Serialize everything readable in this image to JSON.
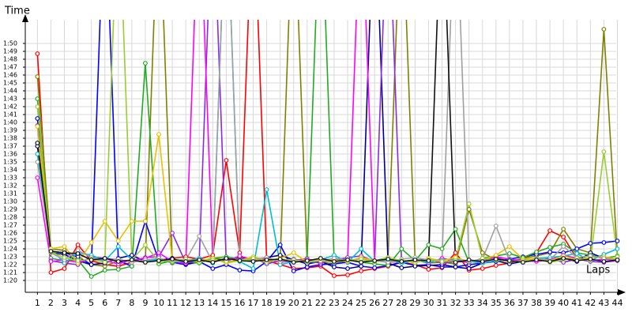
{
  "chart_data": {
    "type": "line",
    "y_label": "Time",
    "x_label": "Laps",
    "x": [
      1,
      2,
      3,
      4,
      5,
      6,
      7,
      8,
      9,
      10,
      11,
      12,
      13,
      14,
      15,
      16,
      17,
      18,
      19,
      20,
      21,
      22,
      23,
      24,
      25,
      26,
      27,
      28,
      29,
      30,
      31,
      32,
      33,
      34,
      35,
      36,
      37,
      38,
      39,
      40,
      41,
      42,
      43,
      44
    ],
    "xlim": [
      0.1,
      44.5
    ],
    "xticks": [
      1,
      2,
      3,
      4,
      5,
      6,
      7,
      8,
      9,
      10,
      11,
      12,
      13,
      14,
      15,
      16,
      17,
      18,
      19,
      20,
      21,
      22,
      23,
      24,
      25,
      26,
      27,
      28,
      29,
      30,
      31,
      32,
      33,
      34,
      35,
      36,
      37,
      38,
      39,
      40,
      41,
      42,
      43,
      44
    ],
    "ylim": [
      78.5,
      113
    ],
    "yticks": [
      {
        "value": 80,
        "label": "1:20"
      },
      {
        "value": 81,
        "label": "1:21"
      },
      {
        "value": 82,
        "label": "1:22"
      },
      {
        "value": 83,
        "label": "1:23"
      },
      {
        "value": 84,
        "label": "1:24"
      },
      {
        "value": 85,
        "label": "1:25"
      },
      {
        "value": 86,
        "label": "1:26"
      },
      {
        "value": 87,
        "label": "1:27"
      },
      {
        "value": 88,
        "label": "1:28"
      },
      {
        "value": 89,
        "label": "1:29"
      },
      {
        "value": 90,
        "label": "1:30"
      },
      {
        "value": 91,
        "label": "1:31"
      },
      {
        "value": 92,
        "label": "1:32"
      },
      {
        "value": 93,
        "label": "1:33"
      },
      {
        "value": 94,
        "label": "1:34"
      },
      {
        "value": 95,
        "label": "1:35"
      },
      {
        "value": 96,
        "label": "1:36"
      },
      {
        "value": 97,
        "label": "1:37"
      },
      {
        "value": 98,
        "label": "1:38"
      },
      {
        "value": 99,
        "label": "1:39"
      },
      {
        "value": 100,
        "label": "1:40"
      },
      {
        "value": 101,
        "label": "1:41"
      },
      {
        "value": 102,
        "label": "1:42"
      },
      {
        "value": 103,
        "label": "1:43"
      },
      {
        "value": 104,
        "label": "1:44"
      },
      {
        "value": 105,
        "label": "1:45"
      },
      {
        "value": 106,
        "label": "1:46"
      },
      {
        "value": 107,
        "label": "1:47"
      },
      {
        "value": 108,
        "label": "1:48"
      },
      {
        "value": 109,
        "label": "1:49"
      },
      {
        "value": 110,
        "label": "1:50"
      }
    ],
    "grid": true,
    "series": [
      {
        "color": "#ff0000",
        "values": [
          108.7,
          81,
          81.5,
          84.5,
          82.5,
          82,
          81.8,
          82.3,
          82.6,
          82.5,
          82.8,
          83,
          82.7,
          83.2,
          95.2,
          83.5,
          130,
          82.5,
          82,
          81.5,
          81.6,
          81.8,
          80.6,
          80.7,
          81.2,
          81.5,
          81.8,
          82.3,
          82,
          81.4,
          81.6,
          83.5,
          81.3,
          81.5,
          81.9,
          82.2,
          82.8,
          83.5,
          86.3,
          85.5,
          82.8,
          83.2,
          82.8,
          82.6
        ]
      },
      {
        "color": "#808000",
        "values": [
          105.8,
          84,
          83.8,
          82.5,
          82,
          81.8,
          82.5,
          82.5,
          82.3,
          130,
          82.2,
          82.5,
          82.4,
          82.8,
          82.6,
          82.8,
          82.5,
          82.8,
          82.5,
          130,
          82.3,
          82.3,
          82.1,
          82.5,
          82.7,
          82.5,
          82.9,
          130,
          82.6,
          82.2,
          82.3,
          82.1,
          89,
          83.5,
          82.6,
          82.4,
          82.8,
          83.1,
          83.5,
          86.5,
          84,
          83.5,
          111.8,
          83
        ]
      },
      {
        "color": "#0000ff",
        "values": [
          100.5,
          83.7,
          83.5,
          83,
          82,
          130,
          82.5,
          81.8,
          87.5,
          82.5,
          82.3,
          82,
          82.4,
          81.5,
          82,
          81.3,
          81.2,
          82.4,
          84.5,
          81.2,
          81.7,
          82,
          82.1,
          82.3,
          81.8,
          81.6,
          81.9,
          82.3,
          81.9,
          82,
          81.7,
          81.7,
          82,
          82.2,
          82.4,
          82.7,
          83,
          83.3,
          83.6,
          83.5,
          84,
          84.7,
          84.8,
          85
        ]
      },
      {
        "color": "#00008b",
        "values": [
          97,
          83.5,
          83.3,
          82.5,
          82,
          82.2,
          82.8,
          83.2,
          82.4,
          82.6,
          82.8,
          82.1,
          82.3,
          82.7,
          82.5,
          83,
          82.6,
          82.9,
          83.2,
          82.6,
          82.1,
          82.4,
          81.7,
          81.5,
          81.8,
          130,
          82.2,
          81.6,
          81.8,
          81.9,
          82,
          81.7,
          81.5,
          82.2,
          82.5,
          82.1,
          82.4,
          82.5,
          82.6,
          82.8,
          82.4,
          83.5,
          82.8,
          82.6
        ]
      },
      {
        "color": "#22aa22",
        "values": [
          103,
          82.8,
          82.5,
          82.6,
          80.5,
          81.3,
          81.4,
          81.8,
          107.5,
          82.1,
          82.5,
          82.4,
          82.2,
          82.8,
          83,
          82.7,
          82.5,
          82.6,
          82.4,
          82.5,
          82.8,
          130,
          82.5,
          82.7,
          82.3,
          82.1,
          81.9,
          84,
          82.5,
          84.5,
          84,
          86.5,
          82.3,
          82.8,
          83.1,
          83.4,
          82.9,
          83.6,
          84.2,
          84.6,
          83.5,
          83.2,
          82.8,
          83.1
        ]
      },
      {
        "color": "#8a2be2",
        "values": [
          99.6,
          82.5,
          82.2,
          82,
          83,
          82.8,
          82.6,
          82.4,
          82.9,
          83,
          86,
          82.2,
          82.5,
          130,
          82.3,
          82.6,
          82.9,
          82.1,
          82.5,
          82.7,
          82.4,
          82.2,
          82.6,
          82.9,
          83.1,
          82.4,
          130,
          82.3,
          82.5,
          82.7,
          82.2,
          82.4,
          82.3,
          82.6,
          82.9,
          82.4,
          82.6,
          82.5,
          82.8,
          82.3,
          82.7,
          82.4,
          82.3,
          82.5
        ]
      },
      {
        "color": "#ff00ff",
        "values": [
          93,
          82.4,
          82.6,
          82.3,
          82.8,
          82.5,
          82.1,
          82.6,
          82.8,
          83.5,
          82.4,
          82.2,
          130,
          82.6,
          82.4,
          83.1,
          82.6,
          82.8,
          82.3,
          82.5,
          82.7,
          82.4,
          82.8,
          82.6,
          130,
          82.5,
          82.3,
          82.4,
          82.6,
          82.2,
          82.8,
          82.5,
          82.4,
          82.3,
          83,
          82.7,
          82.5,
          82.4,
          82.6,
          83.2,
          82.8,
          82.5,
          82.7,
          82.6
        ]
      },
      {
        "color": "#00bcd4",
        "values": [
          96,
          84,
          82.2,
          83.5,
          83.2,
          82.5,
          84.3,
          82.6,
          82.4,
          82.7,
          82.3,
          82.5,
          82.8,
          82.2,
          130,
          82.4,
          81.5,
          91.5,
          82,
          82.4,
          82.5,
          82.6,
          83.2,
          82.3,
          84,
          82.4,
          82.6,
          82.2,
          82.5,
          82.3,
          82.6,
          82.7,
          82.4,
          82.2,
          82.5,
          82.6,
          82.3,
          82.8,
          82.9,
          83.1,
          83.4,
          82.5,
          83.3,
          84
        ]
      },
      {
        "color": "#e6c200",
        "values": [
          99.5,
          84,
          84.3,
          82.2,
          84.8,
          87.5,
          85,
          87.5,
          87.5,
          98.5,
          82.4,
          82.6,
          82.5,
          82.8,
          82.2,
          82.5,
          83,
          82.5,
          82.8,
          83.5,
          82.3,
          82.7,
          82.6,
          82.4,
          82.9,
          82.5,
          82.3,
          82.6,
          82.2,
          82.8,
          82.5,
          82.9,
          82.4,
          82.6,
          83.2,
          84.3,
          82.7,
          82.8,
          82.5,
          83.1,
          82.6,
          82.9,
          83,
          82.7
        ]
      },
      {
        "color": "#a0a0a0",
        "values": [
          95,
          83.5,
          82.6,
          83.8,
          82.9,
          82.4,
          82.7,
          82.3,
          82.6,
          82.8,
          82.5,
          82.6,
          85.6,
          82.3,
          130,
          82.5,
          82.7,
          82.9,
          82.4,
          82.6,
          82.3,
          82.5,
          82.8,
          82.6,
          82.4,
          82.5,
          82.3,
          82.7,
          82.9,
          82.6,
          82.5,
          130,
          82.4,
          82.7,
          86.9,
          82.5,
          82.3,
          82.8,
          82.6,
          84.3,
          82.9,
          83.1,
          82.8,
          82.6
        ]
      },
      {
        "color": "#9acd32",
        "values": [
          102,
          83.6,
          82.9,
          82.5,
          82.7,
          82.3,
          130,
          82.6,
          84.5,
          82.4,
          82.5,
          82.7,
          82.3,
          82.6,
          82.4,
          82.5,
          82.8,
          82.3,
          82.7,
          82.6,
          82.4,
          82.5,
          82.3,
          82.6,
          82.7,
          82.4,
          82.9,
          82.5,
          82.3,
          82.6,
          82.4,
          82.5,
          89.7,
          82.8,
          82.6,
          82.4,
          82.5,
          82.7,
          82.3,
          82.6,
          82.8,
          82.5,
          96.3,
          83
        ]
      },
      {
        "color": "#111111",
        "values": [
          97.4,
          83.7,
          83.5,
          83.4,
          82.6,
          82.8,
          82.4,
          82.6,
          82.3,
          82.5,
          82.7,
          82.4,
          82.6,
          82.3,
          82.8,
          82.5,
          82.4,
          82.6,
          82.7,
          82.3,
          82.5,
          82.8,
          82.4,
          82.6,
          82.3,
          82.5,
          82.7,
          82.4,
          82.6,
          82.5,
          130,
          82.3,
          82.6,
          82.4,
          82.7,
          82.5,
          82.3,
          82.6,
          82.4,
          82.8,
          82.5,
          82.7,
          82.4,
          82.6
        ]
      }
    ]
  }
}
